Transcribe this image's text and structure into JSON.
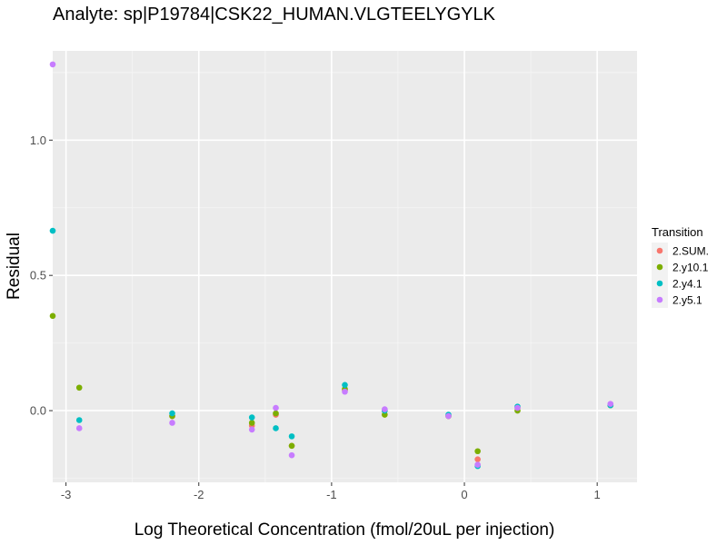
{
  "chart_data": {
    "type": "scatter",
    "title": "Analyte: sp|P19784|CSK22_HUMAN.VLGTEELYGYLK",
    "xlabel": "Log Theoretical Concentration (fmol/20uL per injection)",
    "ylabel": "Residual",
    "xlim": [
      -3.1,
      1.3
    ],
    "ylim": [
      -0.265,
      1.33
    ],
    "x_ticks": [
      -3,
      -2,
      -1,
      0,
      1
    ],
    "x_tick_labels": [
      "-3",
      "-2",
      "-1",
      "0",
      "1"
    ],
    "y_ticks": [
      0.0,
      0.5,
      1.0
    ],
    "y_tick_labels": [
      "0.0",
      "0.5",
      "1.0"
    ],
    "legend": {
      "title": "Transition",
      "position": "right"
    },
    "series": [
      {
        "name": "2.SUM.",
        "color": "#F8766D",
        "points": [
          [
            -2.2,
            -0.02
          ],
          [
            -1.6,
            -0.055
          ],
          [
            -1.42,
            -0.015
          ],
          [
            -1.3,
            -0.13
          ],
          [
            -0.9,
            0.075
          ],
          [
            -0.6,
            0.0
          ],
          [
            -0.12,
            -0.02
          ],
          [
            0.1,
            -0.18
          ],
          [
            0.4,
            0.01
          ],
          [
            1.1,
            0.02
          ]
        ]
      },
      {
        "name": "2.y10.1",
        "color": "#7CAE00",
        "points": [
          [
            -3.1,
            0.35
          ],
          [
            -2.9,
            0.085
          ],
          [
            -2.2,
            -0.02
          ],
          [
            -1.6,
            -0.045
          ],
          [
            -1.42,
            -0.01
          ],
          [
            -1.3,
            -0.13
          ],
          [
            -0.9,
            0.08
          ],
          [
            -0.6,
            -0.015
          ],
          [
            -0.12,
            -0.02
          ],
          [
            0.1,
            -0.15
          ],
          [
            0.4,
            0.0
          ],
          [
            1.1,
            0.02
          ]
        ]
      },
      {
        "name": "2.y4.1",
        "color": "#00BFC4",
        "points": [
          [
            -3.1,
            0.665
          ],
          [
            -2.9,
            -0.035
          ],
          [
            -2.2,
            -0.01
          ],
          [
            -1.6,
            -0.025
          ],
          [
            -1.42,
            -0.065
          ],
          [
            -1.3,
            -0.095
          ],
          [
            -0.9,
            0.095
          ],
          [
            -0.6,
            0.0
          ],
          [
            -0.12,
            -0.015
          ],
          [
            0.1,
            -0.205
          ],
          [
            0.4,
            0.015
          ],
          [
            1.1,
            0.02
          ]
        ]
      },
      {
        "name": "2.y5.1",
        "color": "#C77CFF",
        "points": [
          [
            -3.1,
            1.28
          ],
          [
            -2.9,
            -0.065
          ],
          [
            -2.2,
            -0.045
          ],
          [
            -1.6,
            -0.07
          ],
          [
            -1.42,
            0.01
          ],
          [
            -1.3,
            -0.165
          ],
          [
            -0.9,
            0.07
          ],
          [
            -0.6,
            0.005
          ],
          [
            -0.12,
            -0.02
          ],
          [
            0.1,
            -0.2
          ],
          [
            0.4,
            0.01
          ],
          [
            1.1,
            0.025
          ]
        ]
      }
    ]
  }
}
